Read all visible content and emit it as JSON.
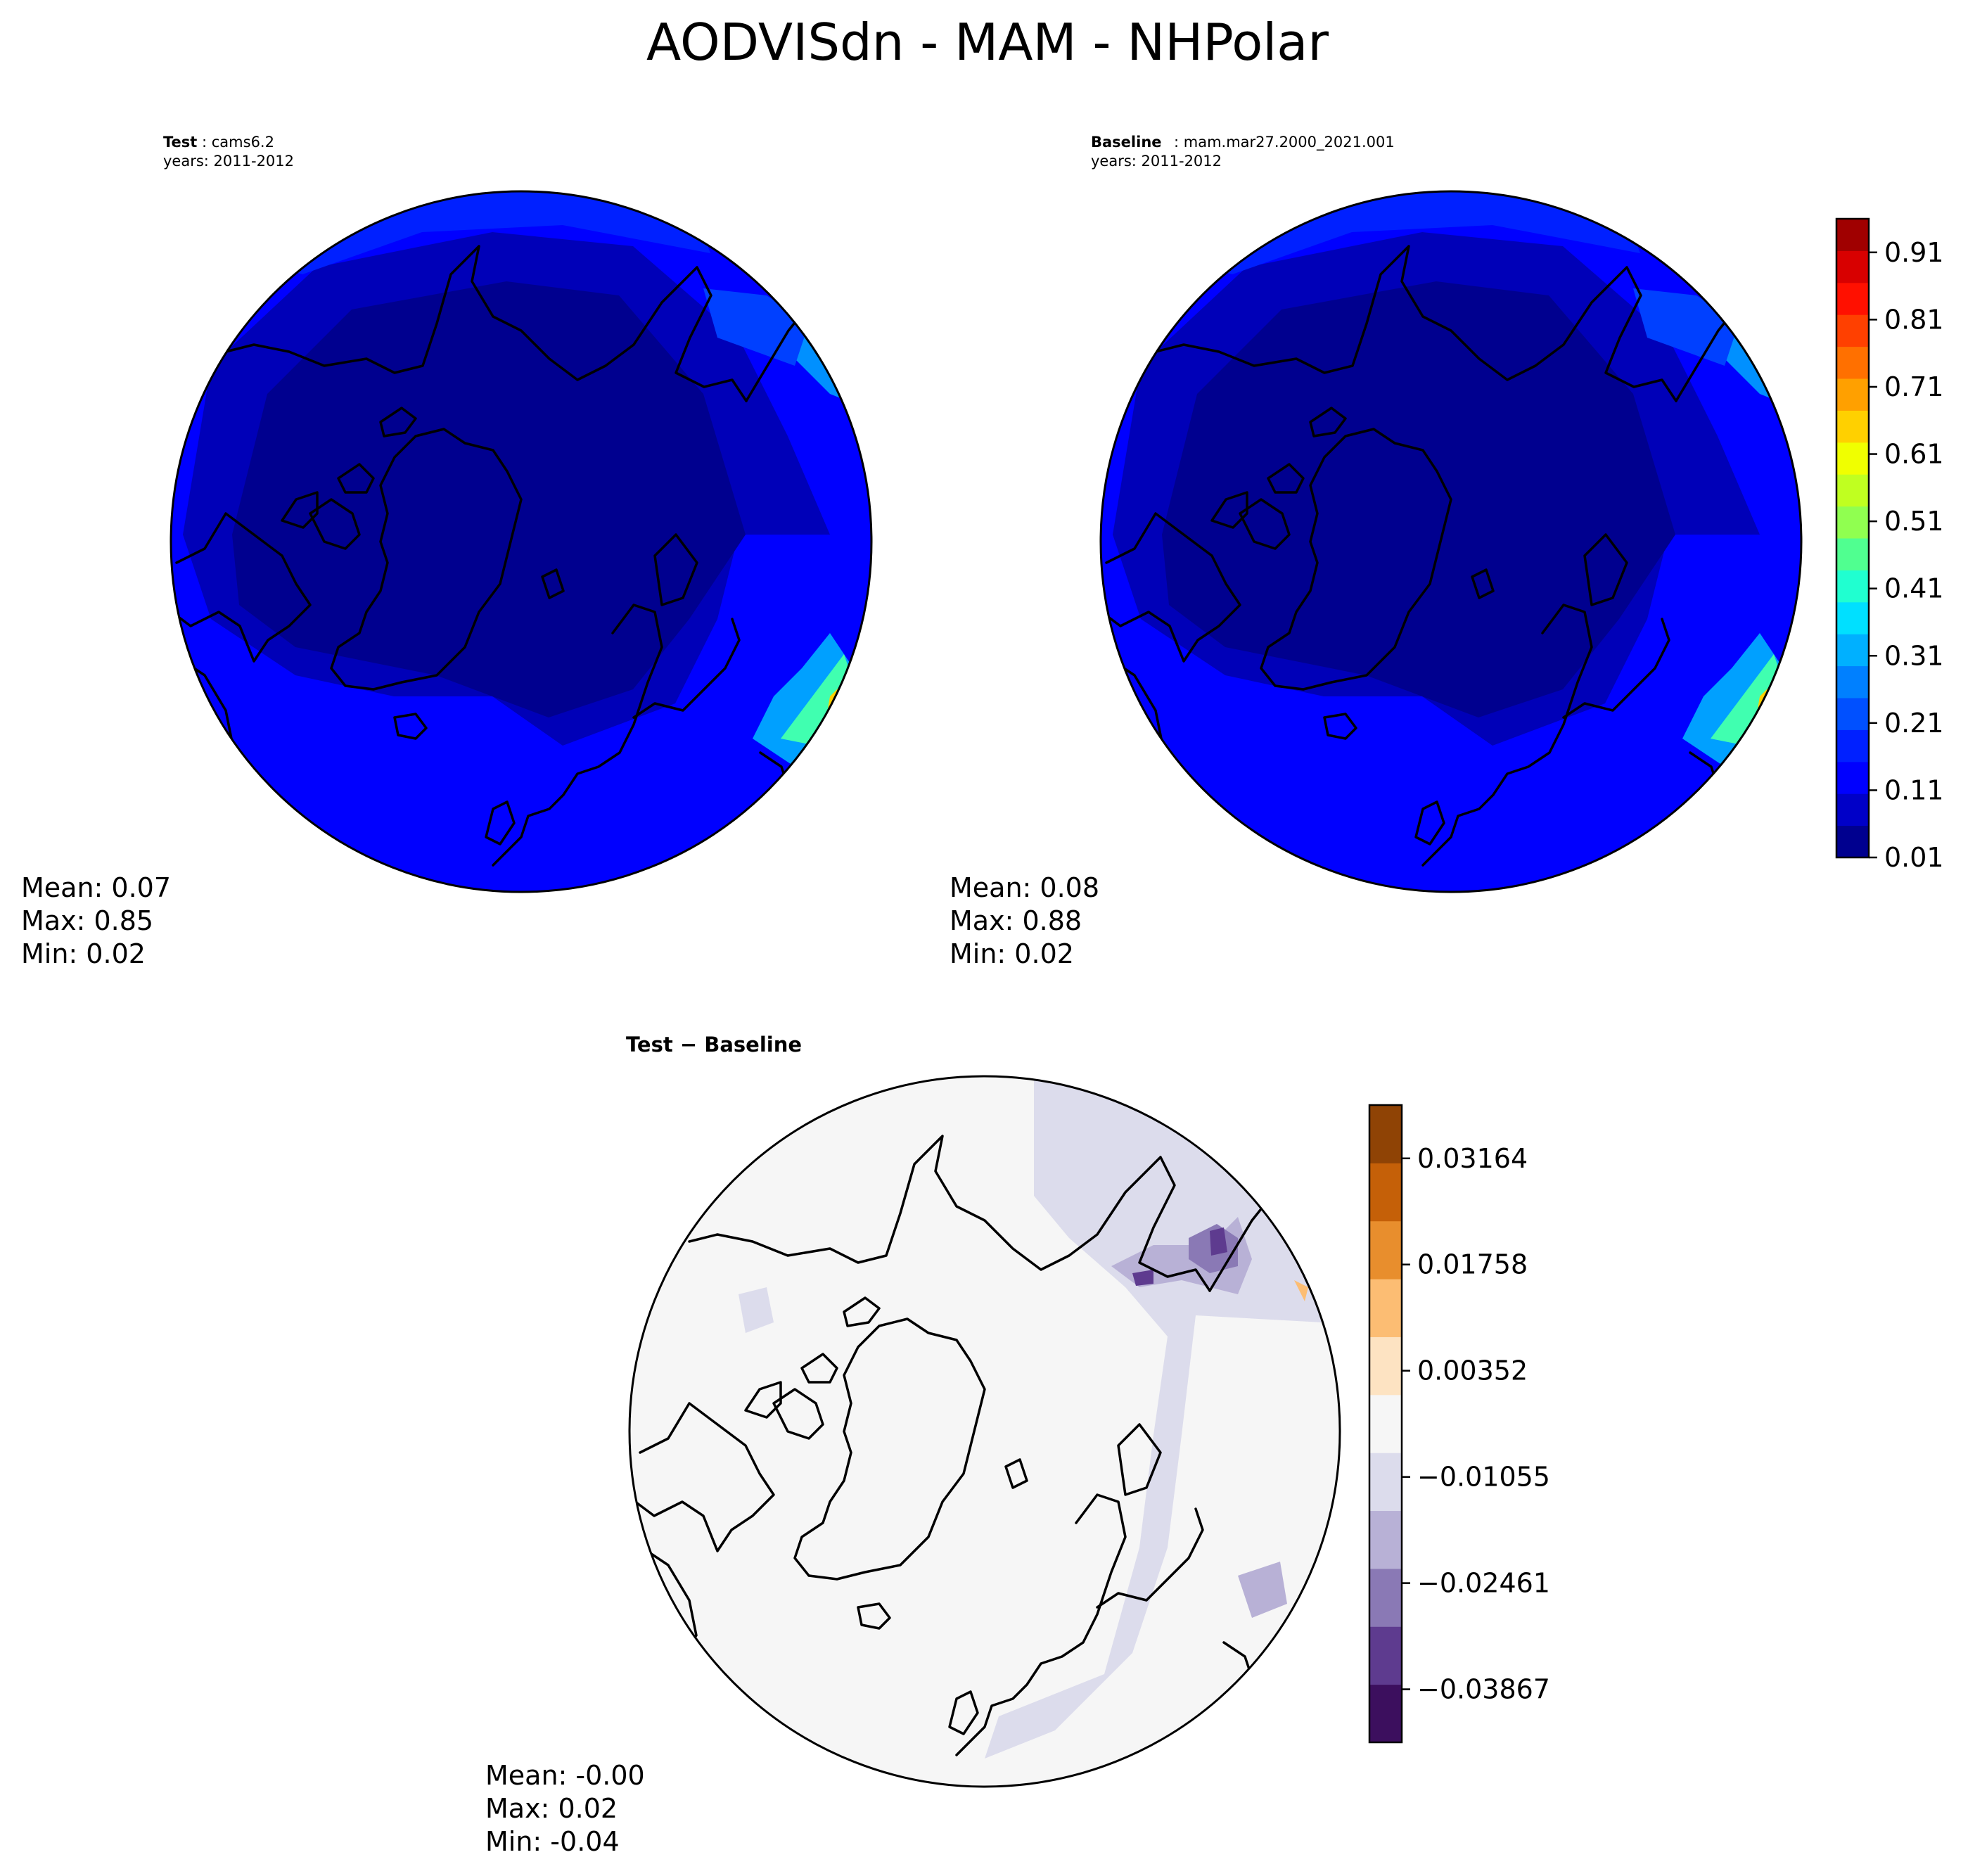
{
  "title": "AODVISdn - MAM - NHPolar",
  "colors": {
    "aod_levels": [
      "#00008f",
      "#0000c8",
      "#0000ff",
      "#0020ff",
      "#0050ff",
      "#0080ff",
      "#00b0ff",
      "#00e0ff",
      "#20ffd0",
      "#50ff90",
      "#90ff50",
      "#c0ff20",
      "#f0ff00",
      "#ffd000",
      "#ffa000",
      "#ff7000",
      "#ff4000",
      "#ff1000",
      "#d80000",
      "#a00000"
    ],
    "diff_levels": [
      "#3c0f5e",
      "#5e3b8f",
      "#8a79b5",
      "#b8b1d6",
      "#dcdcec",
      "#f6f6f6",
      "#fde3c2",
      "#fcbd73",
      "#e88e2d",
      "#c56008",
      "#8f4305"
    ],
    "coast": "#000000"
  },
  "chart_data": [
    {
      "type": "heatmap",
      "projection": "north-polar-stereographic",
      "title": {
        "bold": "Test",
        "text": ": cams6.2",
        "line2": "years: 2011-2012"
      },
      "stats": {
        "mean": "Mean:  0.07",
        "max": "Max:  0.85",
        "min": "Min:  0.02"
      },
      "mean": 0.07,
      "max": 0.85,
      "min": 0.02
    },
    {
      "type": "heatmap",
      "projection": "north-polar-stereographic",
      "title": {
        "bold": "Baseline",
        "text": ": mam.mar27.2000_2021.001",
        "line2": "years: 2011-2012"
      },
      "stats": {
        "mean": "Mean:  0.08",
        "max": "Max:  0.88",
        "min": "Min:  0.02"
      },
      "mean": 0.08,
      "max": 0.88,
      "min": 0.02
    },
    {
      "type": "heatmap",
      "projection": "north-polar-stereographic",
      "title": {
        "bold": "Test − Baseline"
      },
      "stats": {
        "mean": "Mean: -0.00",
        "max": "Max:  0.02",
        "min": "Min: -0.04"
      },
      "mean": -0.0,
      "max": 0.02,
      "min": -0.04
    }
  ],
  "colorbars": {
    "aod": {
      "range": [
        0.01,
        0.96
      ],
      "ticks": [
        "0.01",
        "0.11",
        "0.21",
        "0.31",
        "0.41",
        "0.51",
        "0.61",
        "0.71",
        "0.81",
        "0.91"
      ],
      "tick_values": [
        0.01,
        0.11,
        0.21,
        0.31,
        0.41,
        0.51,
        0.61,
        0.71,
        0.81,
        0.91
      ]
    },
    "diff": {
      "range": [
        -0.0457,
        0.0387
      ],
      "ticks": [
        "−0.03867",
        "−0.02461",
        "−0.01055",
        "0.00352",
        "0.01758",
        "0.03164"
      ],
      "tick_values": [
        -0.03867,
        -0.02461,
        -0.01055,
        0.00352,
        0.01758,
        0.03164
      ]
    }
  }
}
